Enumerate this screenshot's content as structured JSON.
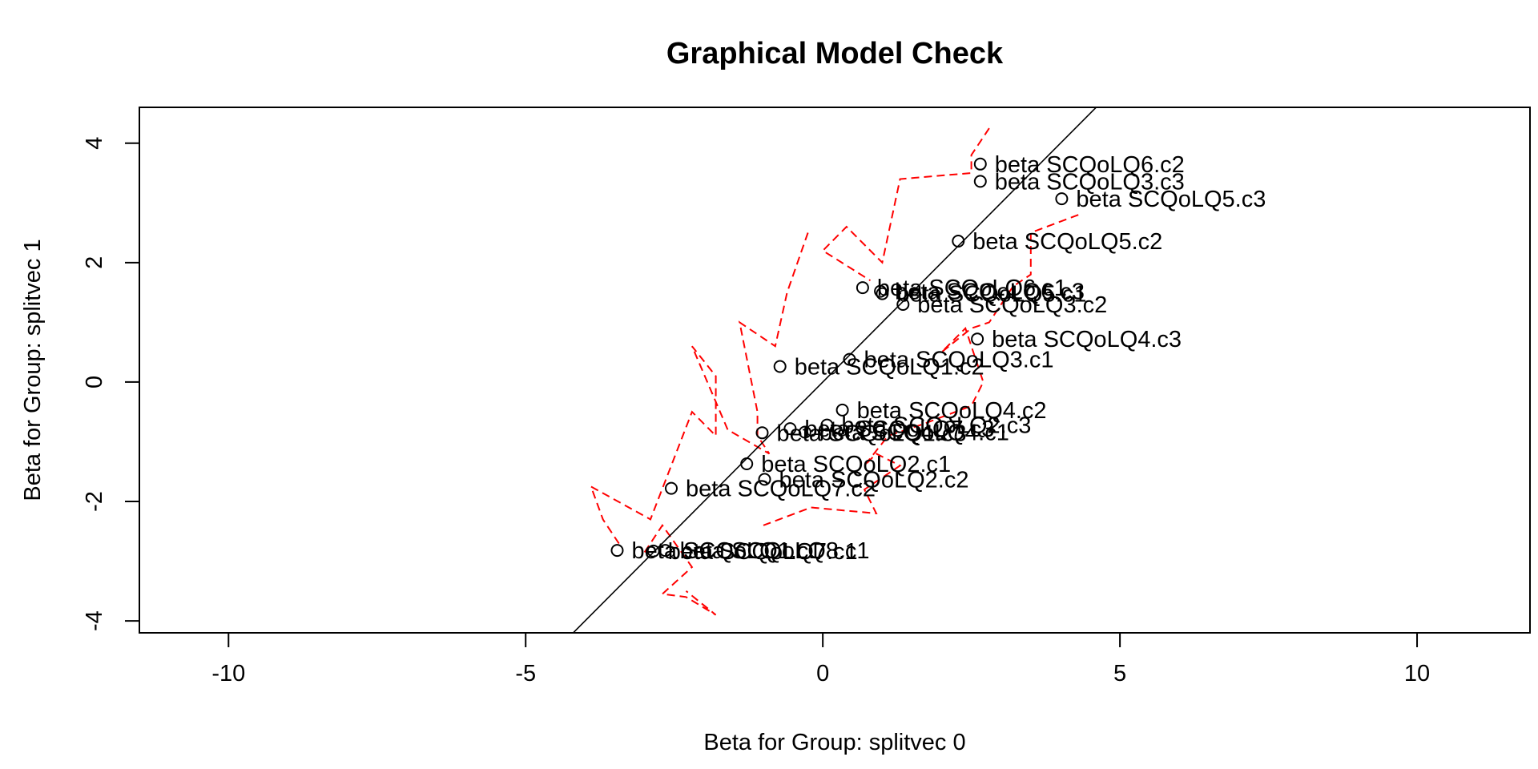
{
  "chart_data": {
    "type": "scatter",
    "title": "Graphical Model Check",
    "xlabel": "Beta for Group: splitvec 0",
    "ylabel": "Beta for Group: splitvec 1",
    "xlim": [
      -11.5,
      11.9
    ],
    "ylim": [
      -4.2,
      4.6
    ],
    "x_ticks": [
      -10,
      -5,
      0,
      5,
      10
    ],
    "y_ticks": [
      -4,
      -2,
      0,
      2,
      4
    ],
    "diagonal": {
      "slope": 1,
      "intercept": 0,
      "color": "#000000"
    },
    "confidence_color": "#FF0000",
    "points": [
      {
        "label": "beta SCQoLQ6.c2",
        "x": 2.65,
        "y": 3.65
      },
      {
        "label": "beta SCQoLQ3.c3",
        "x": 2.65,
        "y": 3.36
      },
      {
        "label": "beta SCQoLQ5.c3",
        "x": 4.02,
        "y": 3.07
      },
      {
        "label": "beta SCQoLQ5.c2",
        "x": 2.28,
        "y": 2.36
      },
      {
        "label": "beta SCQoLQ6.c1",
        "x": 0.67,
        "y": 1.58
      },
      {
        "label": "beta SCQoLQ6.c3",
        "x": 0.97,
        "y": 1.52
      },
      {
        "label": "beta SCQoLQ5.c1",
        "x": 1.0,
        "y": 1.48
      },
      {
        "label": "beta SCQoLQ3.c2",
        "x": 1.35,
        "y": 1.3
      },
      {
        "label": "beta SCQoLQ4.c3",
        "x": 2.6,
        "y": 0.72
      },
      {
        "label": "beta SCQoLQ3.c1",
        "x": 0.45,
        "y": 0.38
      },
      {
        "label": "beta SCQoLQ1.c2",
        "x": -0.72,
        "y": 0.26
      },
      {
        "label": "beta SCQoLQ4.c2",
        "x": 0.33,
        "y": -0.47
      },
      {
        "label": "beta SCQoLQ2.c3",
        "x": 0.07,
        "y": -0.72
      },
      {
        "label": "beta SCQoLQ7.c3",
        "x": -0.55,
        "y": -0.78
      },
      {
        "label": "beta SCQoLQ4.c1",
        "x": -0.3,
        "y": -0.84
      },
      {
        "label": "beta SCQoLQ1.c3",
        "x": -1.02,
        "y": -0.85
      },
      {
        "label": "beta SCQoLQ2.c1",
        "x": -1.28,
        "y": -1.37
      },
      {
        "label": "beta SCQoLQ2.c2",
        "x": -0.98,
        "y": -1.63
      },
      {
        "label": "beta SCQoLQ7.c2",
        "x": -2.55,
        "y": -1.78
      },
      {
        "label": "beta SCQoLQ1.c1",
        "x": -3.46,
        "y": -2.82
      },
      {
        "label": "beta SCQoLQ7.c1",
        "x": -2.85,
        "y": -2.83
      },
      {
        "label": "beta SCQoLQ8.c1",
        "x": -2.65,
        "y": -2.82
      }
    ],
    "confidence_polygons": [
      [
        [
          2.8,
          4.25
        ],
        [
          2.5,
          3.8
        ],
        [
          2.5,
          3.5
        ],
        [
          1.3,
          3.4
        ],
        [
          1.0,
          2.0
        ],
        [
          0.4,
          2.6
        ],
        [
          0.0,
          2.2
        ],
        [
          0.8,
          1.7
        ]
      ],
      [
        [
          -0.25,
          2.5
        ],
        [
          -0.6,
          1.5
        ],
        [
          -0.8,
          0.6
        ],
        [
          -1.4,
          1.0
        ],
        [
          -1.1,
          -0.5
        ],
        [
          -1.1,
          -0.9
        ],
        [
          -0.9,
          -1.2
        ],
        [
          -1.6,
          -0.8
        ],
        [
          -2.2,
          0.6
        ],
        [
          -1.8,
          0.1
        ],
        [
          -1.8,
          -0.9
        ],
        [
          -2.2,
          -0.5
        ],
        [
          -2.9,
          -2.3
        ],
        [
          -3.9,
          -1.75
        ],
        [
          -3.7,
          -2.3
        ],
        [
          -3.4,
          -2.75
        ]
      ],
      [
        [
          -3.0,
          -2.85
        ],
        [
          -2.7,
          -2.4
        ],
        [
          -2.2,
          -3.1
        ],
        [
          -2.7,
          -3.55
        ],
        [
          -2.3,
          -3.6
        ],
        [
          -1.8,
          -3.9
        ],
        [
          -2.3,
          -3.5
        ]
      ],
      [
        [
          4.3,
          2.8
        ],
        [
          3.5,
          2.5
        ],
        [
          3.5,
          1.8
        ],
        [
          3.2,
          1.6
        ],
        [
          2.8,
          1.0
        ],
        [
          2.5,
          0.9
        ],
        [
          2.0,
          0.5
        ],
        [
          2.4,
          0.9
        ],
        [
          2.7,
          0.0
        ],
        [
          2.5,
          -0.4
        ],
        [
          1.7,
          -0.7
        ],
        [
          1.1,
          -0.9
        ],
        [
          0.7,
          -1.4
        ],
        [
          0.9,
          -1.2
        ],
        [
          1.3,
          -1.4
        ],
        [
          0.7,
          -1.8
        ],
        [
          0.9,
          -2.2
        ],
        [
          -0.2,
          -2.1
        ],
        [
          -1.0,
          -2.4
        ]
      ]
    ]
  }
}
